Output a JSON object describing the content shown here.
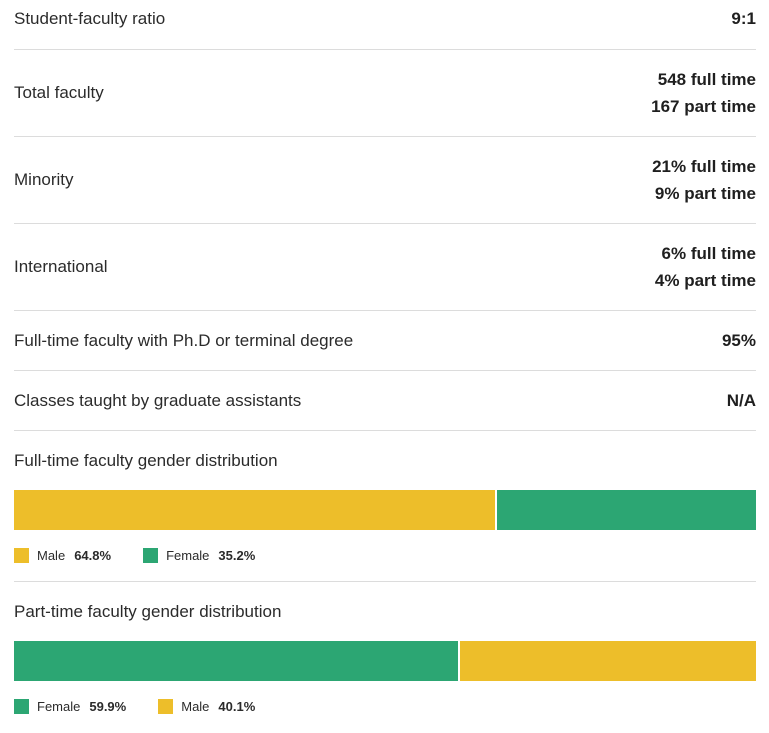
{
  "colors": {
    "male": "#EDBE2A",
    "female": "#2CA673"
  },
  "stats": [
    {
      "label": "Student-faculty ratio",
      "values": [
        "9:1"
      ]
    },
    {
      "label": "Total faculty",
      "values": [
        "548 full time",
        "167 part time"
      ]
    },
    {
      "label": "Minority",
      "values": [
        "21% full time",
        "9% part time"
      ]
    },
    {
      "label": "International",
      "values": [
        "6% full time",
        "4% part time"
      ]
    },
    {
      "label": "Full-time faculty with Ph.D or terminal degree",
      "values": [
        "95%"
      ]
    },
    {
      "label": "Classes taught by graduate assistants",
      "values": [
        "N/A"
      ]
    }
  ],
  "full_time_gender": {
    "title": "Full-time faculty gender distribution",
    "segments": [
      {
        "label": "Male",
        "pct_text": "64.8%",
        "value": 64.8,
        "color_key": "male"
      },
      {
        "label": "Female",
        "pct_text": "35.2%",
        "value": 35.2,
        "color_key": "female"
      }
    ]
  },
  "part_time_gender": {
    "title": "Part-time faculty gender distribution",
    "segments": [
      {
        "label": "Female",
        "pct_text": "59.9%",
        "value": 59.9,
        "color_key": "female"
      },
      {
        "label": "Male",
        "pct_text": "40.1%",
        "value": 40.1,
        "color_key": "male"
      }
    ]
  }
}
